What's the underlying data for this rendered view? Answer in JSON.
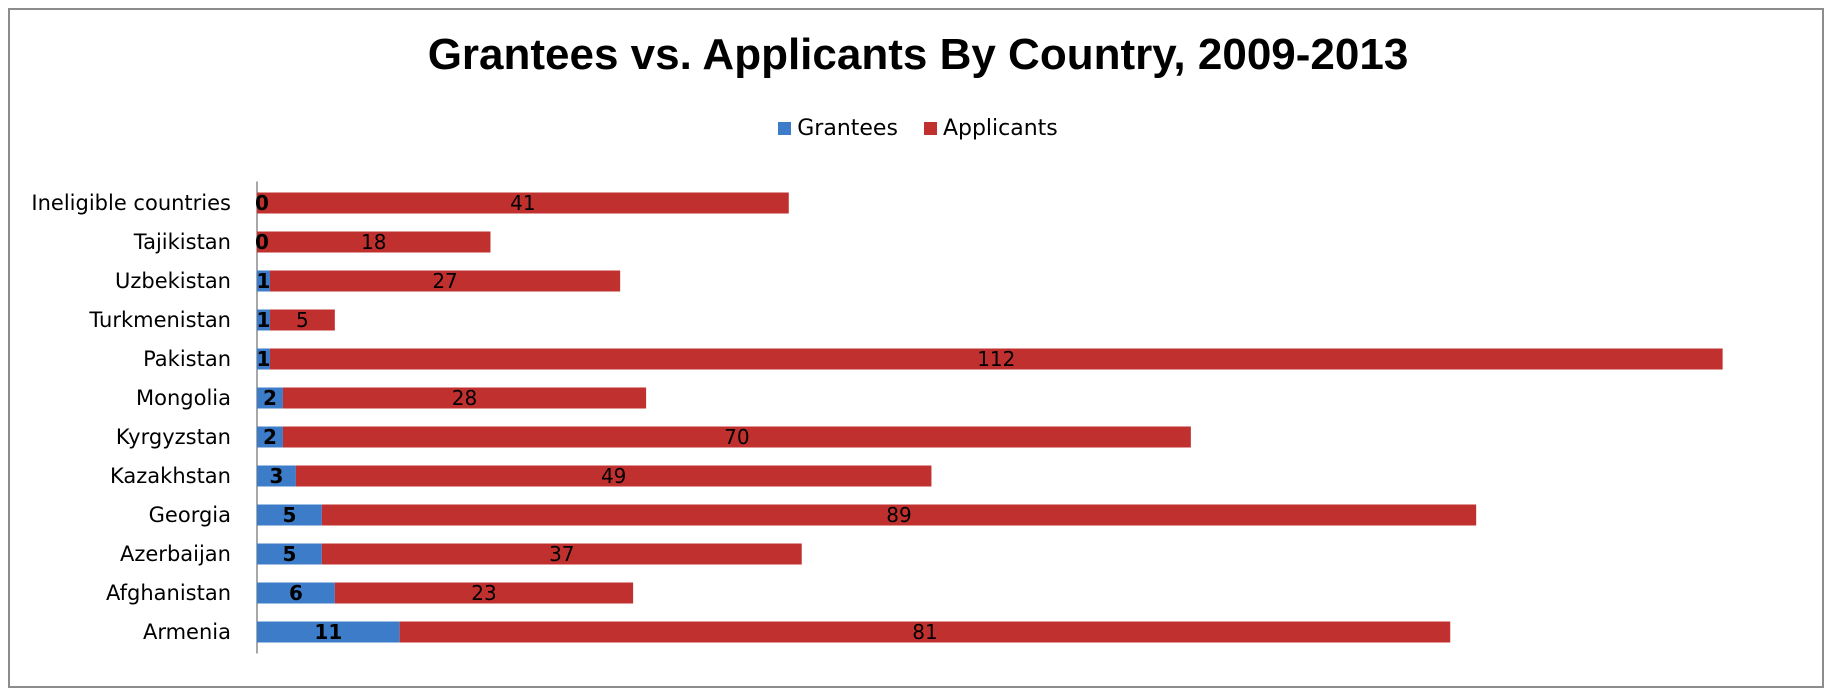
{
  "chart_data": {
    "type": "bar",
    "orientation": "horizontal",
    "stacked": true,
    "title": "Grantees vs. Applicants By Country, 2009-2013",
    "legend_position": "top",
    "categories": [
      "Armenia",
      "Afghanistan",
      "Azerbaijan",
      "Georgia",
      "Kazakhstan",
      "Kyrgyzstan",
      "Mongolia",
      "Pakistan",
      "Turkmenistan",
      "Uzbekistan",
      "Tajikistan",
      "Ineligible countries"
    ],
    "series": [
      {
        "name": "Grantees",
        "color": "#3d7cc9",
        "values": [
          11,
          6,
          5,
          5,
          3,
          2,
          2,
          1,
          1,
          1,
          0,
          0
        ]
      },
      {
        "name": "Applicants",
        "color": "#c0302f",
        "values": [
          81,
          23,
          37,
          89,
          49,
          70,
          28,
          112,
          5,
          27,
          18,
          41
        ]
      }
    ],
    "xlim": [
      0,
      113
    ],
    "grid": false,
    "data_labels": true
  }
}
